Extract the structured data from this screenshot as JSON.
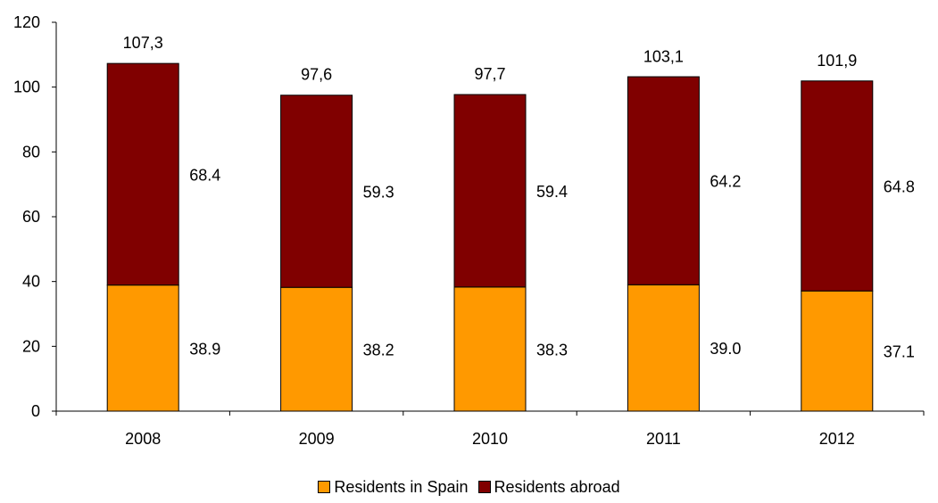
{
  "chart_data": {
    "type": "bar",
    "stacked": true,
    "categories": [
      "2008",
      "2009",
      "2010",
      "2011",
      "2012"
    ],
    "series": [
      {
        "name": "Residents in Spain",
        "values": [
          38.9,
          38.2,
          38.3,
          39.0,
          37.1
        ],
        "labels": [
          "38.9",
          "38.2",
          "38.3",
          "39.0",
          "37.1"
        ],
        "color": "#FF9900"
      },
      {
        "name": "Residents abroad",
        "values": [
          68.4,
          59.3,
          59.4,
          64.2,
          64.8
        ],
        "labels": [
          "68.4",
          "59.3",
          "59.4",
          "64.2",
          "64.8"
        ],
        "color": "#800000"
      }
    ],
    "totals": [
      107.3,
      97.6,
      97.7,
      103.1,
      101.9
    ],
    "total_labels": [
      "107,3",
      "97,6",
      "97,7",
      "103,1",
      "101,9"
    ],
    "yticks": [
      "0",
      "20",
      "40",
      "60",
      "80",
      "100",
      "120"
    ],
    "ylim": [
      0,
      120
    ],
    "grid": false,
    "legend_position": "bottom"
  }
}
